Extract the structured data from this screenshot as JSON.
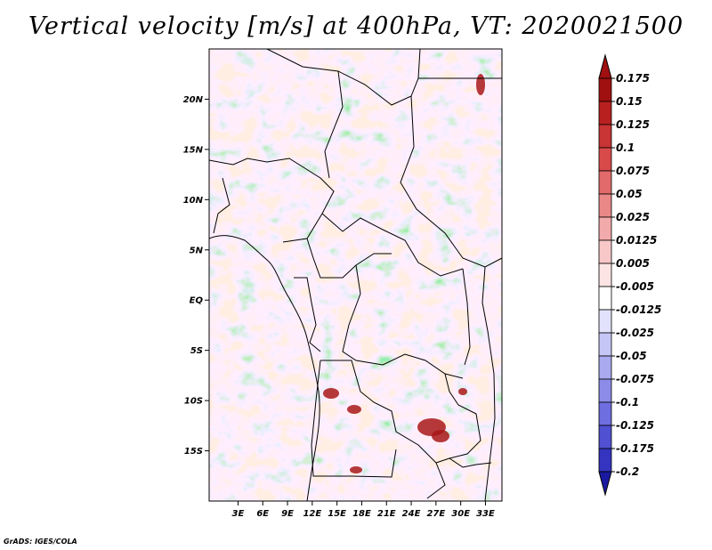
{
  "title": "Vertical velocity [m/s] at 400hPa, VT: 2020021500",
  "credit": "GrADS: IGES/COLA",
  "map": {
    "lon_range": [
      -0.5,
      35
    ],
    "lat_range": [
      -20,
      25
    ],
    "lat_ticks": [
      {
        "value": 20,
        "label": "20N"
      },
      {
        "value": 15,
        "label": "15N"
      },
      {
        "value": 10,
        "label": "10N"
      },
      {
        "value": 5,
        "label": "5N"
      },
      {
        "value": 0,
        "label": "EQ"
      },
      {
        "value": -5,
        "label": "5S"
      },
      {
        "value": -10,
        "label": "10S"
      },
      {
        "value": -15,
        "label": "15S"
      }
    ],
    "lon_ticks": [
      {
        "value": 3,
        "label": "3E"
      },
      {
        "value": 6,
        "label": "6E"
      },
      {
        "value": 9,
        "label": "9E"
      },
      {
        "value": 12,
        "label": "12E"
      },
      {
        "value": 15,
        "label": "15E"
      },
      {
        "value": 18,
        "label": "18E"
      },
      {
        "value": 21,
        "label": "21E"
      },
      {
        "value": 24,
        "label": "24E"
      },
      {
        "value": 27,
        "label": "27E"
      },
      {
        "value": 30,
        "label": "30E"
      },
      {
        "value": 33,
        "label": "33E"
      }
    ]
  },
  "colorbar": {
    "levels": [
      {
        "label": "0.175",
        "color": "#a01010"
      },
      {
        "label": "0.15",
        "color": "#b82020"
      },
      {
        "label": "0.125",
        "color": "#c93434"
      },
      {
        "label": "0.1",
        "color": "#d84a4a"
      },
      {
        "label": "0.075",
        "color": "#e26a6a"
      },
      {
        "label": "0.05",
        "color": "#ea8888"
      },
      {
        "label": "0.025",
        "color": "#f3aaaa"
      },
      {
        "label": "0.0125",
        "color": "#f8c8c8"
      },
      {
        "label": "0.005",
        "color": "#fce4e4"
      },
      {
        "label": "-0.005",
        "color": "#ffffff"
      },
      {
        "label": "-0.0125",
        "color": "#e2e2fc"
      },
      {
        "label": "-0.025",
        "color": "#c6c6f6"
      },
      {
        "label": "-0.05",
        "color": "#aaaaf0"
      },
      {
        "label": "-0.075",
        "color": "#8c8ce8"
      },
      {
        "label": "-0.1",
        "color": "#6e6ee0"
      },
      {
        "label": "-0.125",
        "color": "#5050d2"
      },
      {
        "label": "-0.175",
        "color": "#3434c0"
      },
      {
        "label": "-0.2",
        "color": "#1e1eaa"
      }
    ],
    "top_arrow_color": "#a01010",
    "bottom_arrow_color": "#1a1aa0"
  }
}
